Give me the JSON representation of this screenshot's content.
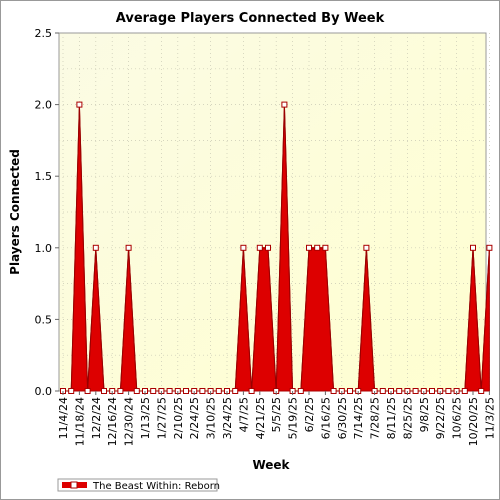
{
  "chart_data": {
    "type": "area",
    "title": "Average Players Connected By Week",
    "xlabel": "Week",
    "ylabel": "Players Connected",
    "ylim": [
      0,
      2.5
    ],
    "yticks": [
      "0.0",
      "0.5",
      "1.0",
      "1.5",
      "2.0",
      "2.5"
    ],
    "grid": true,
    "legend_position": "bottom-left",
    "x_tick_labels": [
      "11/4/24",
      "11/18/24",
      "12/2/24",
      "12/16/24",
      "12/30/24",
      "1/13/25",
      "1/27/25",
      "2/10/25",
      "2/24/25",
      "3/10/25",
      "3/24/25",
      "4/7/25",
      "4/21/25",
      "5/5/25",
      "5/19/25",
      "6/2/25",
      "6/16/25",
      "6/30/25",
      "7/14/25",
      "7/28/25",
      "8/11/25",
      "8/25/25",
      "9/8/25",
      "9/22/25",
      "10/6/25",
      "10/20/25",
      "11/3/25"
    ],
    "x": [
      "11/4/24",
      "11/11/24",
      "11/18/24",
      "11/25/24",
      "12/2/24",
      "12/9/24",
      "12/16/24",
      "12/23/24",
      "12/30/24",
      "1/6/25",
      "1/13/25",
      "1/20/25",
      "1/27/25",
      "2/3/25",
      "2/10/25",
      "2/17/25",
      "2/24/25",
      "3/3/25",
      "3/10/25",
      "3/17/25",
      "3/24/25",
      "3/31/25",
      "4/7/25",
      "4/14/25",
      "4/21/25",
      "4/28/25",
      "5/5/25",
      "5/12/25",
      "5/19/25",
      "5/26/25",
      "6/2/25",
      "6/9/25",
      "6/16/25",
      "6/23/25",
      "6/30/25",
      "7/7/25",
      "7/14/25",
      "7/21/25",
      "7/28/25",
      "8/4/25",
      "8/11/25",
      "8/18/25",
      "8/25/25",
      "9/1/25",
      "9/8/25",
      "9/15/25",
      "9/22/25",
      "9/29/25",
      "10/6/25",
      "10/13/25",
      "10/20/25",
      "10/27/25",
      "11/3/25"
    ],
    "series": [
      {
        "name": "The Beast Within: Reborn",
        "color": "#dd0000",
        "values": [
          0,
          0,
          2,
          0,
          1,
          0,
          0,
          0,
          1,
          0,
          0,
          0,
          0,
          0,
          0,
          0,
          0,
          0,
          0,
          0,
          0,
          0,
          1,
          0,
          1,
          1,
          0,
          2,
          0,
          0,
          1,
          1,
          1,
          0,
          0,
          0,
          0,
          1,
          0,
          0,
          0,
          0,
          0,
          0,
          0,
          0,
          0,
          0,
          0,
          0,
          1,
          0,
          1
        ]
      }
    ]
  }
}
